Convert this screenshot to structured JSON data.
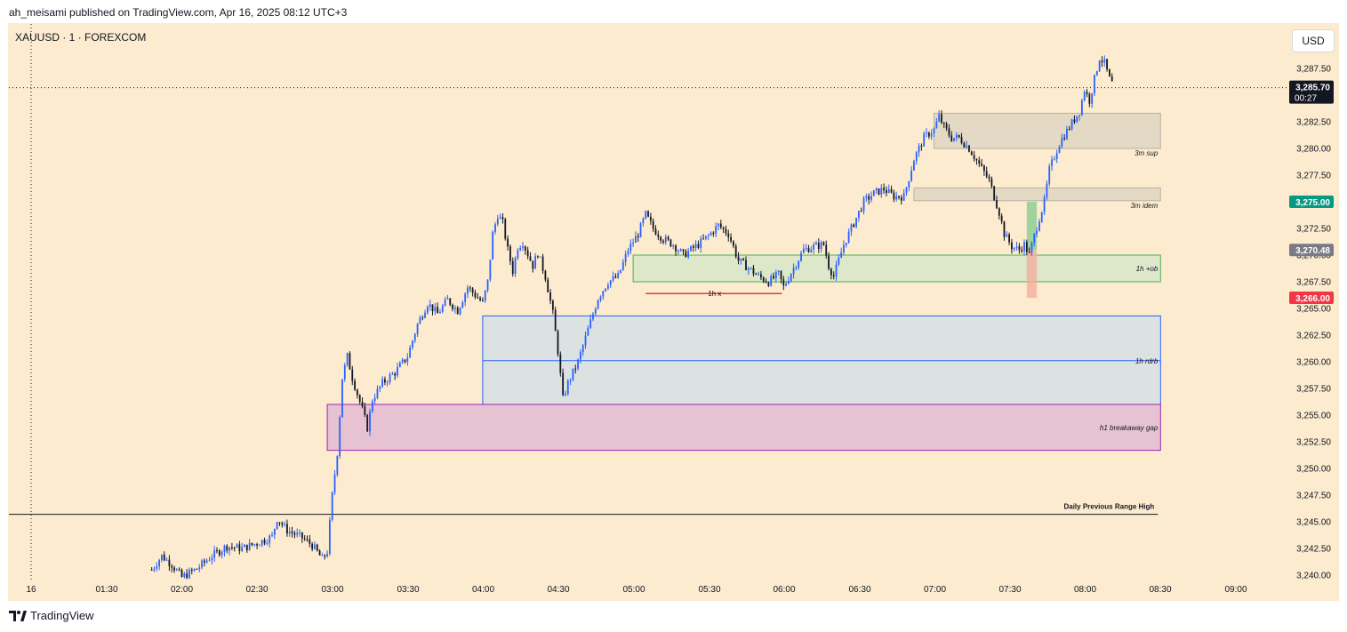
{
  "header": {
    "publisher": "ah_meisami published on TradingView.com, Apr 16, 2025 08:12 UTC+3"
  },
  "symbol_line": "XAUUSD · 1 · FOREXCOM",
  "currency_button": "USD",
  "footer": {
    "brand": "TradingView",
    "logo_icon": "tradingview-logo-icon"
  },
  "colors": {
    "background": "#fcebcf",
    "candle_up": "#2962ff",
    "candle_down": "#131722",
    "price_tag_dark": "#131722",
    "price_tag_green": "#089981",
    "price_tag_gray": "#787b86",
    "price_tag_red": "#f23645"
  },
  "chart_data": {
    "type": "candlestick",
    "symbol": "XAUUSD",
    "interval": "1",
    "exchange": "FOREXCOM",
    "ylim": [
      3240.0,
      3290.0
    ],
    "y_ticks": [
      "3,240.00",
      "3,242.50",
      "3,245.00",
      "3,247.50",
      "3,250.00",
      "3,252.50",
      "3,255.00",
      "3,257.50",
      "3,260.00",
      "3,262.50",
      "3,265.00",
      "3,267.50",
      "3,270.00",
      "3,272.50",
      "3,275.00",
      "3,277.50",
      "3,280.00",
      "3,282.50",
      "3,285.00",
      "3,287.50"
    ],
    "x_ticks": [
      "16",
      "01:30",
      "02:00",
      "02:30",
      "03:00",
      "03:30",
      "04:00",
      "04:30",
      "05:00",
      "05:30",
      "06:00",
      "06:30",
      "07:00",
      "07:30",
      "08:00",
      "08:30",
      "09:00"
    ],
    "price_path": [
      [
        "01:48",
        3240.5
      ],
      [
        "01:52",
        3241.8
      ],
      [
        "01:56",
        3241.0
      ],
      [
        "02:00",
        3239.8
      ],
      [
        "02:06",
        3240.6
      ],
      [
        "02:12",
        3241.8
      ],
      [
        "02:18",
        3242.7
      ],
      [
        "02:24",
        3242.5
      ],
      [
        "02:30",
        3243.0
      ],
      [
        "02:36",
        3243.6
      ],
      [
        "02:38",
        3245.3
      ],
      [
        "02:42",
        3244.2
      ],
      [
        "02:48",
        3243.5
      ],
      [
        "02:52",
        3242.8
      ],
      [
        "02:56",
        3241.5
      ],
      [
        "02:58",
        3242.2
      ],
      [
        "03:00",
        3247.5
      ],
      [
        "03:02",
        3251.5
      ],
      [
        "03:04",
        3258.5
      ],
      [
        "03:06",
        3260.5
      ],
      [
        "03:08",
        3258.5
      ],
      [
        "03:10",
        3257.0
      ],
      [
        "03:12",
        3255.5
      ],
      [
        "03:14",
        3253.8
      ],
      [
        "03:16",
        3256.5
      ],
      [
        "03:20",
        3258.0
      ],
      [
        "03:25",
        3259.0
      ],
      [
        "03:30",
        3260.5
      ],
      [
        "03:34",
        3263.5
      ],
      [
        "03:38",
        3265.5
      ],
      [
        "03:42",
        3264.5
      ],
      [
        "03:46",
        3265.8
      ],
      [
        "03:50",
        3264.8
      ],
      [
        "03:54",
        3267.0
      ],
      [
        "03:58",
        3266.0
      ],
      [
        "04:00",
        3265.5
      ],
      [
        "04:02",
        3267.5
      ],
      [
        "04:04",
        3272.0
      ],
      [
        "04:06",
        3273.8
      ],
      [
        "04:08",
        3273.0
      ],
      [
        "04:10",
        3270.5
      ],
      [
        "04:12",
        3268.5
      ],
      [
        "04:14",
        3270.8
      ],
      [
        "04:16",
        3271.2
      ],
      [
        "04:20",
        3269.0
      ],
      [
        "04:22",
        3270.2
      ],
      [
        "04:25",
        3268.0
      ],
      [
        "04:28",
        3264.5
      ],
      [
        "04:30",
        3261.0
      ],
      [
        "04:32",
        3256.5
      ],
      [
        "04:34",
        3258.0
      ],
      [
        "04:38",
        3260.0
      ],
      [
        "04:42",
        3263.0
      ],
      [
        "04:46",
        3266.0
      ],
      [
        "04:50",
        3267.5
      ],
      [
        "04:54",
        3268.0
      ],
      [
        "04:58",
        3270.5
      ],
      [
        "05:02",
        3272.0
      ],
      [
        "05:05",
        3273.8
      ],
      [
        "05:08",
        3272.5
      ],
      [
        "05:12",
        3271.5
      ],
      [
        "05:16",
        3271.0
      ],
      [
        "05:20",
        3270.0
      ],
      [
        "05:26",
        3271.0
      ],
      [
        "05:30",
        3271.8
      ],
      [
        "05:34",
        3272.8
      ],
      [
        "05:38",
        3272.0
      ],
      [
        "05:42",
        3269.5
      ],
      [
        "05:46",
        3268.8
      ],
      [
        "05:50",
        3268.0
      ],
      [
        "05:54",
        3267.5
      ],
      [
        "05:58",
        3268.2
      ],
      [
        "06:00",
        3267.0
      ],
      [
        "06:04",
        3268.8
      ],
      [
        "06:08",
        3270.5
      ],
      [
        "06:12",
        3270.8
      ],
      [
        "06:16",
        3271.0
      ],
      [
        "06:18",
        3269.0
      ],
      [
        "06:20",
        3268.0
      ],
      [
        "06:24",
        3271.0
      ],
      [
        "06:28",
        3273.0
      ],
      [
        "06:32",
        3275.0
      ],
      [
        "06:36",
        3275.8
      ],
      [
        "06:40",
        3276.2
      ],
      [
        "06:44",
        3275.5
      ],
      [
        "06:48",
        3275.5
      ],
      [
        "06:52",
        3279.0
      ],
      [
        "06:56",
        3281.0
      ],
      [
        "07:00",
        3281.8
      ],
      [
        "07:02",
        3283.0
      ],
      [
        "07:04",
        3282.0
      ],
      [
        "07:07",
        3281.0
      ],
      [
        "07:10",
        3281.0
      ],
      [
        "07:14",
        3280.0
      ],
      [
        "07:18",
        3278.5
      ],
      [
        "07:22",
        3277.0
      ],
      [
        "07:24",
        3275.5
      ],
      [
        "07:26",
        3274.0
      ],
      [
        "07:28",
        3272.0
      ],
      [
        "07:31",
        3270.8
      ],
      [
        "07:34",
        3270.5
      ],
      [
        "07:36",
        3271.0
      ],
      [
        "07:38",
        3270.0
      ],
      [
        "07:40",
        3271.8
      ],
      [
        "07:42",
        3273.5
      ],
      [
        "07:44",
        3275.0
      ],
      [
        "07:46",
        3278.0
      ],
      [
        "07:50",
        3280.5
      ],
      [
        "07:54",
        3282.0
      ],
      [
        "07:58",
        3283.5
      ],
      [
        "08:00",
        3285.5
      ],
      [
        "08:02",
        3284.5
      ],
      [
        "08:04",
        3286.5
      ],
      [
        "08:06",
        3288.5
      ],
      [
        "08:08",
        3288.0
      ],
      [
        "08:10",
        3286.5
      ],
      [
        "08:12",
        3285.7
      ]
    ],
    "zones": [
      {
        "label": "3m sup",
        "from": "07:00",
        "to": "08:30",
        "top": 3283.3,
        "bottom": 3280.0,
        "fill": "#e4d9c4",
        "stroke": "#b8b0a2"
      },
      {
        "label": "3m idem",
        "from": "06:52",
        "to": "08:30",
        "top": 3276.3,
        "bottom": 3275.1,
        "fill": "#e4d9c4",
        "stroke": "#b8b0a2"
      },
      {
        "label": "1h +ob",
        "from": "05:00",
        "to": "08:30",
        "top": 3270.0,
        "bottom": 3267.5,
        "fill": "#dce8c9",
        "stroke": "#4caf50"
      },
      {
        "label": "1h rdrb",
        "from": "04:00",
        "to": "08:30",
        "top": 3264.3,
        "bottom": 3256.0,
        "fill": "#dce2e2",
        "stroke": "#2962ff",
        "midline": 3260.1
      },
      {
        "label": "h1 breakaway gap",
        "from": "02:58",
        "to": "08:30",
        "top": 3256.0,
        "bottom": 3251.7,
        "fill": "#e6c2d2",
        "stroke": "#9c27b0"
      }
    ],
    "lines": [
      {
        "label": "Daily Previous Range High",
        "value": 3245.7,
        "from": "00:55",
        "to": "08:30",
        "color": "#131722"
      },
      {
        "label": "1h x",
        "value": 3266.4,
        "from": "05:05",
        "to": "06:00",
        "color": "#e53935"
      }
    ],
    "position": {
      "entry": 3270.48,
      "target": 3275.0,
      "stop": 3266.0,
      "from": "07:37",
      "to": "07:41"
    },
    "price_tags": [
      {
        "price": "3,285.70",
        "countdown": "00:27",
        "value": 3285.7,
        "color": "#131722"
      },
      {
        "price": "3,275.00",
        "value": 3275.0,
        "color": "#089981"
      },
      {
        "price": "3,270.48",
        "value": 3270.48,
        "color": "#787b86"
      },
      {
        "price": "3,266.00",
        "value": 3266.0,
        "color": "#f23645"
      }
    ],
    "crosshair": {
      "time": "01:00",
      "value": 3285.7
    },
    "grid": false
  }
}
